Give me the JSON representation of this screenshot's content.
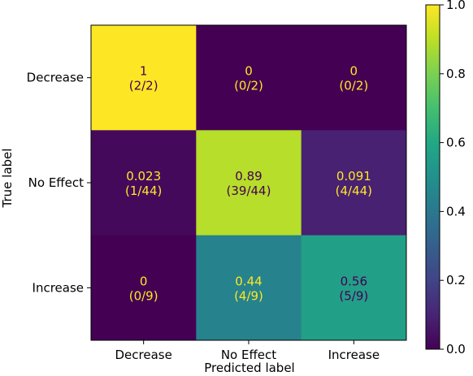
{
  "chart_data": {
    "type": "heatmap",
    "xlabel": "Predicted label",
    "ylabel": "True label",
    "x_categories": [
      "Decrease",
      "No Effect",
      "Increase"
    ],
    "y_categories": [
      "Decrease",
      "No Effect",
      "Increase"
    ],
    "values": [
      [
        1,
        0,
        0
      ],
      [
        0.023,
        0.89,
        0.091
      ],
      [
        0,
        0.44,
        0.56
      ]
    ],
    "value_labels": [
      [
        "1",
        "0",
        "0"
      ],
      [
        "0.023",
        "0.89",
        "0.091"
      ],
      [
        "0",
        "0.44",
        "0.56"
      ]
    ],
    "count_labels": [
      [
        "(2/2)",
        "(0/2)",
        "(0/2)"
      ],
      [
        "(1/44)",
        "(39/44)",
        "(4/44)"
      ],
      [
        "(0/9)",
        "(4/9)",
        "(5/9)"
      ]
    ],
    "colormap": "viridis",
    "colorbar": {
      "range": [
        0.0,
        1.0
      ],
      "ticks": [
        0.0,
        0.2,
        0.4,
        0.6,
        0.8,
        1.0
      ],
      "tick_labels": [
        "0.0",
        "0.2",
        "0.4",
        "0.6",
        "0.8",
        "1.0"
      ]
    },
    "text_colors": {
      "light": "#fde725",
      "dark": "#440154"
    }
  }
}
